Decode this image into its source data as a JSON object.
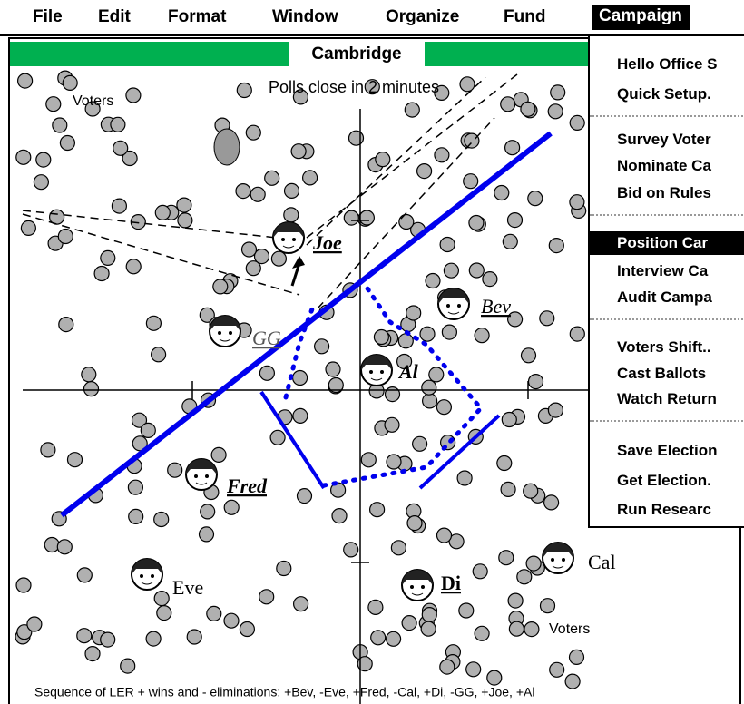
{
  "menu": [
    "File",
    "Edit",
    "Format",
    "Window",
    "Organize",
    "Fund",
    "Campaign"
  ],
  "window_title": "Cambridge",
  "status": "Polls close in 2 minutes",
  "voter_labels": [
    "Voters",
    "Voters"
  ],
  "candidates": [
    "Joe",
    "Bev",
    "GG",
    "Al",
    "Fred",
    "Eve",
    "Di",
    "Cal"
  ],
  "dropdown": [
    [
      "Hello Office S",
      "Quick Setup."
    ],
    [
      "Survey Voter",
      "Nominate Ca",
      "Bid on Rules"
    ],
    [
      "Position Car",
      "Interview Ca",
      "Audit Campa"
    ],
    [
      "Voters Shift..",
      "Cast Ballots",
      "Watch Return"
    ],
    [
      "Save Election",
      "Get Election.",
      "Run Researc"
    ]
  ],
  "footer": "Sequence of LER + wins and - eliminations: +Bev, -Eve, +Fred, -Cal, +Di, -GG, +Joe, +Al"
}
